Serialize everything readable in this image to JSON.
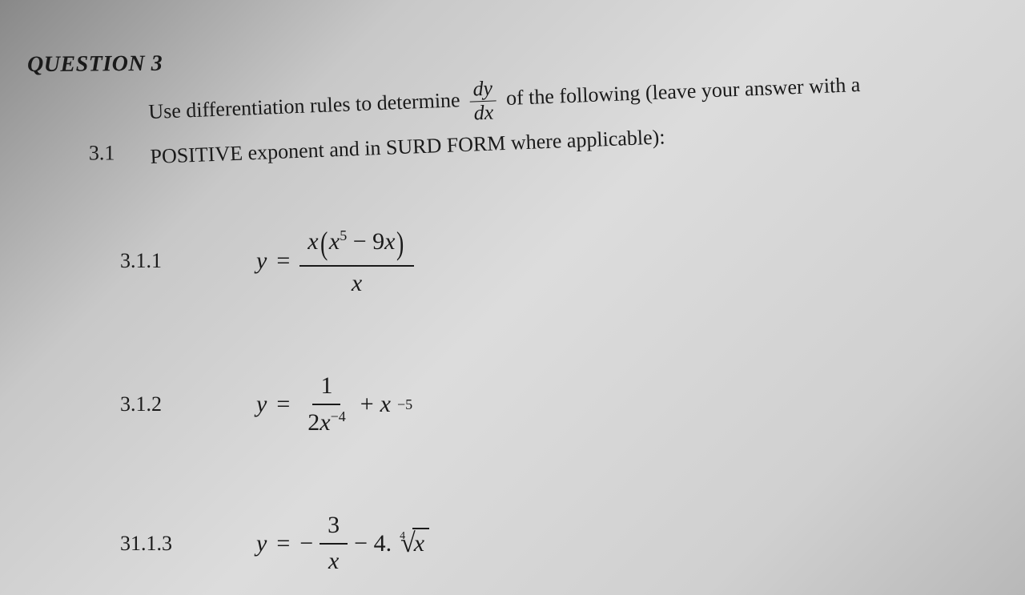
{
  "heading": "QUESTION 3",
  "section_number": "3.1",
  "instruction_part1": "Use differentiation rules to determine",
  "dydx_top": "dy",
  "dydx_bot": "dx",
  "instruction_part2": "of the following (leave your answer with a",
  "instruction_part3": "POSITIVE exponent and in SURD FORM where applicable):",
  "problems": {
    "p1": {
      "num": "3.1.1",
      "lhs": "y",
      "numer_prefix": "x",
      "numer_inside_a": "x",
      "numer_inside_a_exp": "5",
      "numer_inside_op": " − 9",
      "numer_inside_b": "x",
      "denom": "x"
    },
    "p2": {
      "num": "3.1.2",
      "lhs": "y",
      "frac_top": "1",
      "frac_bot_coeff": "2",
      "frac_bot_var": "x",
      "frac_bot_exp": "−4",
      "plus": " + ",
      "term2_var": "x",
      "term2_exp": "−5"
    },
    "p3": {
      "num": "31.1.3",
      "lhs": "y",
      "neg": "−",
      "frac_top": "3",
      "frac_bot": "x",
      "minus": " − 4.",
      "root_index": "4",
      "radicand": "x"
    }
  },
  "colors": {
    "ink": "#1a1a1a",
    "paper_light": "#dcdcdc",
    "paper_dark": "#888888"
  },
  "typography": {
    "base_font": "Times New Roman",
    "heading_size_pt": 21,
    "body_size_pt": 20,
    "math_size_pt": 22
  }
}
